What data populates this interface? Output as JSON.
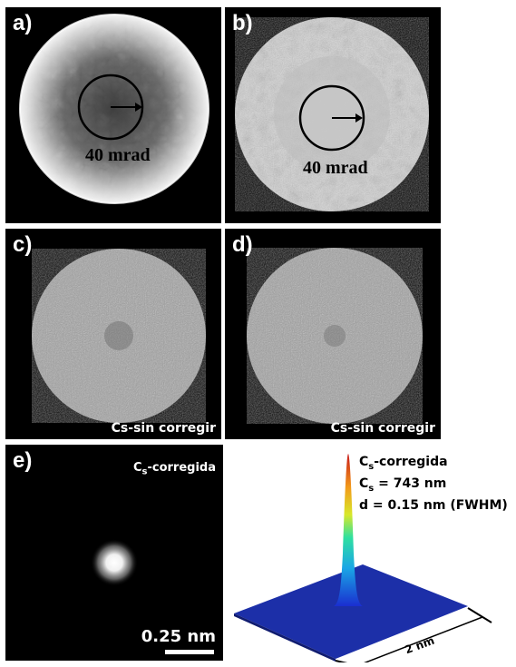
{
  "panels": {
    "a": {
      "label": "a)",
      "annotation": "40 mrad"
    },
    "b": {
      "label": "b)",
      "annotation": "40 mrad"
    },
    "c": {
      "label": "c)",
      "caption": "Cs-sin corregir"
    },
    "d": {
      "label": "d)",
      "caption": "Cs-sin corregir"
    },
    "e": {
      "label": "e)",
      "caption_main": "C",
      "caption_sub": "s",
      "caption_rest": "-corregida",
      "scale_bar": "0.25 nm"
    }
  },
  "plot3d": {
    "line1_main": "C",
    "line1_sub": "s",
    "line1_rest": "-corregida",
    "line2_main": "C",
    "line2_sub": "s",
    "line2_rest": " = 743 nm",
    "line3": "d = 0.15 nm (FWHM)",
    "dimension": "2 nm"
  },
  "colors": {
    "background": "#000000",
    "surface": "#1c2fa8",
    "peak_top": "#c81a1a"
  }
}
